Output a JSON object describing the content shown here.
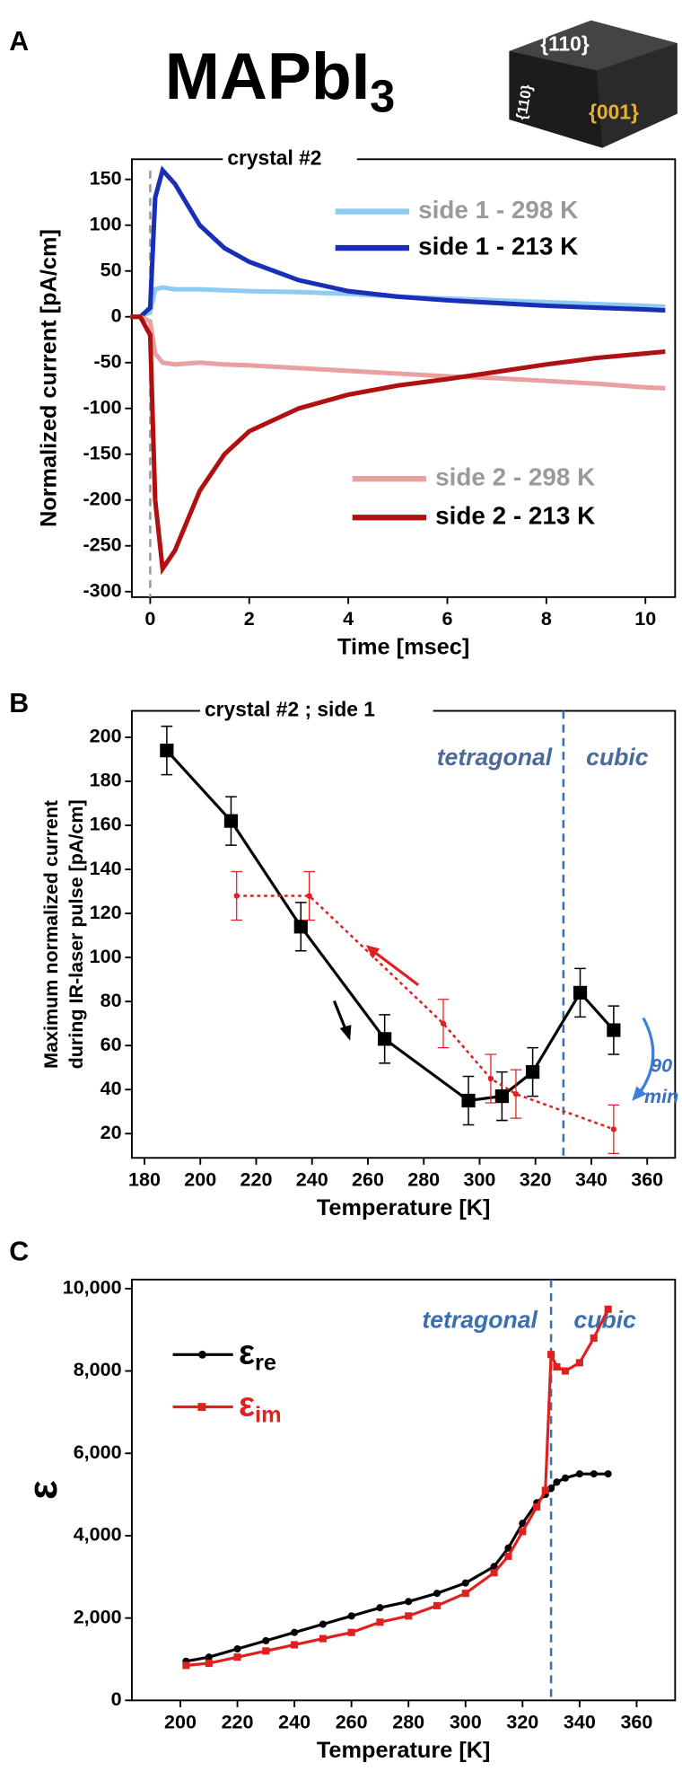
{
  "chart_data": [
    {
      "type": "line",
      "panel": "A",
      "title": "MAPbI",
      "title_sub": "3",
      "inset_labels": [
        "{110}",
        "{110}",
        "{001}"
      ],
      "inset_label": "crystal #2",
      "xlabel": "Time [msec]",
      "ylabel": "Normalized current [pA/cm]",
      "xlim": [
        -0.37,
        10.6
      ],
      "ylim": [
        -306,
        172
      ],
      "xticks": [
        0,
        2,
        4,
        6,
        8,
        10
      ],
      "yticks": [
        150,
        100,
        50,
        0,
        -50,
        -100,
        -150,
        -200,
        -250,
        -300
      ],
      "vline": 0,
      "vline_color": "#999999",
      "x": [
        -0.4,
        -0.2,
        0,
        0.1,
        0.25,
        0.5,
        1,
        1.5,
        2,
        3,
        4,
        5,
        6,
        7,
        8,
        9,
        10,
        10.4
      ],
      "series": [
        {
          "name": "side 1 -  298 K",
          "color": "#8ecbf2",
          "label_color": "#9a9a9a",
          "values": [
            0,
            0,
            5,
            30,
            32,
            30,
            30,
            29,
            28,
            27,
            25,
            22,
            20,
            18,
            16,
            14,
            12,
            11
          ]
        },
        {
          "name": "side 1 -  213 K",
          "color": "#1a2fb8",
          "label_color": "#000000",
          "values": [
            0,
            0,
            10,
            130,
            160,
            145,
            100,
            75,
            60,
            40,
            28,
            22,
            18,
            15,
            12,
            10,
            8,
            7
          ]
        },
        {
          "name": "side 2 - 298 K",
          "color": "#e8a0a0",
          "label_color": "#9a9a9a",
          "values": [
            0,
            0,
            -5,
            -40,
            -50,
            -52,
            -50,
            -52,
            -53,
            -56,
            -59,
            -62,
            -65,
            -67,
            -70,
            -73,
            -77,
            -78
          ]
        },
        {
          "name": "side 2 - 213 K",
          "color": "#b01010",
          "label_color": "#000000",
          "values": [
            0,
            0,
            -20,
            -200,
            -275,
            -255,
            -190,
            -150,
            -125,
            -100,
            -85,
            -75,
            -68,
            -60,
            -52,
            -45,
            -40,
            -38
          ]
        }
      ]
    },
    {
      "type": "scatter",
      "panel": "B",
      "inset_label": "crystal #2 ; side 1",
      "xlabel": "Temperature [K]",
      "ylabel": [
        "Maximum normalized current",
        "during IR-laser pulse [pA/cm]"
      ],
      "phase_labels": [
        "tetragonal",
        "cubic"
      ],
      "phase_color": "#4a6b9a",
      "annotation": [
        "90",
        "min"
      ],
      "annotation_color": "#3a6fc4",
      "xlim": [
        175.5,
        370
      ],
      "ylim": [
        9,
        212
      ],
      "xticks": [
        180,
        200,
        220,
        240,
        260,
        280,
        300,
        320,
        340,
        360
      ],
      "yticks": [
        20,
        40,
        60,
        80,
        100,
        120,
        140,
        160,
        180,
        200
      ],
      "vline": 330,
      "vline_color": "#3a6fb0",
      "series": [
        {
          "color": "#000000",
          "marker": "square",
          "x": [
            188,
            211,
            236,
            266,
            296,
            308,
            319,
            336,
            348
          ],
          "values": [
            194,
            162,
            114,
            63,
            35,
            37,
            48,
            84,
            67
          ],
          "errors": [
            11,
            11,
            11,
            11,
            11,
            11,
            11,
            11,
            11
          ]
        },
        {
          "color": "#e02020",
          "marker": "dot",
          "dash": true,
          "x": [
            213,
            239,
            287,
            304,
            313,
            348
          ],
          "values": [
            128,
            128,
            70,
            45,
            38,
            22
          ],
          "errors": [
            11,
            11,
            11,
            11,
            11,
            11
          ]
        }
      ]
    },
    {
      "type": "line",
      "panel": "C",
      "xlabel": "Temperature [K]",
      "ylabel": "ε",
      "phase_labels": [
        "tetragonal",
        "cubic"
      ],
      "phase_color": "#3a6fb0",
      "xlim": [
        183,
        373.5
      ],
      "ylim": [
        0,
        10220
      ],
      "xticks": [
        200,
        220,
        240,
        260,
        280,
        300,
        320,
        340,
        360
      ],
      "yticks": [
        0,
        {
          "value": 2000,
          "label": "2,000"
        },
        {
          "value": 4000,
          "label": "4,000"
        },
        {
          "value": 6000,
          "label": "6,000"
        },
        {
          "value": 8000,
          "label": "8,000"
        },
        {
          "value": 10000,
          "label": "10,000"
        }
      ],
      "vline": 330,
      "vline_color": "#3a6fb0",
      "x": [
        202,
        210,
        220,
        230,
        240,
        250,
        260,
        270,
        280,
        290,
        300,
        310,
        315,
        320,
        325,
        328,
        330,
        332,
        335,
        340,
        345,
        350
      ],
      "series": [
        {
          "name": "ε",
          "subscript": "re",
          "color": "#000000",
          "marker": "dot",
          "values": [
            950,
            1050,
            1250,
            1450,
            1650,
            1850,
            2050,
            2250,
            2400,
            2600,
            2850,
            3250,
            3700,
            4300,
            4800,
            5000,
            5150,
            5300,
            5400,
            5500,
            5500,
            5500
          ]
        },
        {
          "name": "ε",
          "subscript": "im",
          "color": "#e02020",
          "marker": "square",
          "values": [
            850,
            900,
            1050,
            1200,
            1350,
            1500,
            1650,
            1900,
            2050,
            2300,
            2600,
            3100,
            3500,
            4100,
            4700,
            5100,
            8400,
            8100,
            8000,
            8200,
            8800,
            9500
          ]
        }
      ]
    }
  ]
}
